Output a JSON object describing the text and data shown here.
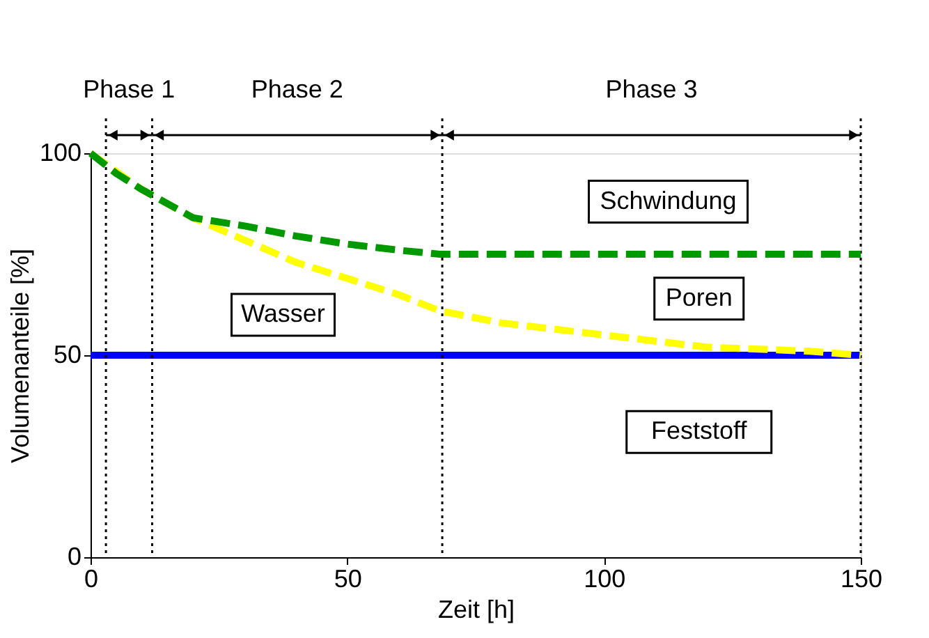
{
  "chart_data": {
    "type": "line",
    "xlabel": "Zeit [h]",
    "ylabel": "Volumenanteile [%]",
    "xlim": [
      0,
      150
    ],
    "ylim": [
      0,
      100
    ],
    "xticks": [
      0,
      50,
      100,
      150
    ],
    "yticks": [
      0,
      50,
      100
    ],
    "grid": false,
    "series": [
      {
        "color": "#0000ff",
        "line_style": "solid",
        "x": [
          0,
          150
        ],
        "values": [
          50,
          50
        ]
      },
      {
        "color": "#ffff00",
        "line_style": "dashed",
        "x": [
          0,
          10,
          20,
          40,
          60,
          68,
          80,
          100,
          120,
          140,
          150
        ],
        "values": [
          100,
          91,
          84,
          73,
          65,
          61,
          58,
          55,
          52,
          51,
          50
        ]
      },
      {
        "color": "#009900",
        "line_style": "dashed",
        "x": [
          0,
          5,
          10,
          20,
          30,
          40,
          50,
          60,
          68,
          150
        ],
        "values": [
          100,
          95,
          91,
          84,
          82,
          79.5,
          77.5,
          76,
          75,
          75
        ]
      }
    ],
    "ref_lines": [
      {
        "axis": "x",
        "value": 3,
        "line_style": "dotted",
        "color": "#000000"
      },
      {
        "axis": "x",
        "value": 12,
        "line_style": "dotted",
        "color": "#000000"
      },
      {
        "axis": "x",
        "value": 68.5,
        "line_style": "dotted",
        "color": "#000000"
      },
      {
        "axis": "x",
        "value": 150,
        "line_style": "dotted",
        "color": "#000000"
      }
    ],
    "annotations": [
      "Phase 1",
      "Phase 2",
      "Phase 3",
      "Schwindung",
      "Poren",
      "Wasser",
      "Feststoff"
    ]
  }
}
